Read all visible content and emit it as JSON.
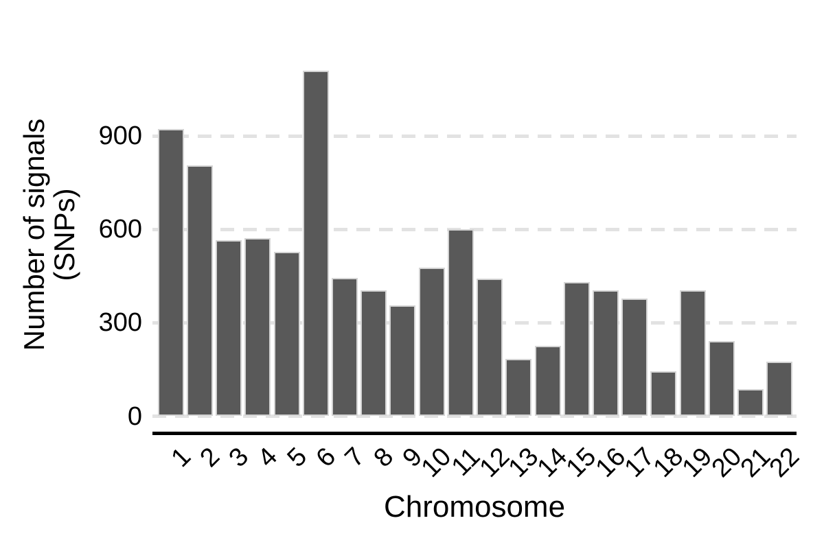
{
  "chart_data": {
    "type": "bar",
    "xlabel": "Chromosome",
    "ylabel_lines": [
      "Number of signals",
      "(SNPs)"
    ],
    "categories": [
      "1",
      "2",
      "3",
      "4",
      "5",
      "6",
      "7",
      "8",
      "9",
      "10",
      "11",
      "12",
      "13",
      "14",
      "15",
      "16",
      "17",
      "18",
      "19",
      "20",
      "21",
      "22"
    ],
    "values": [
      922,
      806,
      566,
      573,
      528,
      1110,
      445,
      405,
      355,
      477,
      600,
      443,
      183,
      226,
      431,
      404,
      377,
      145,
      404,
      242,
      88,
      176
    ],
    "yticks": [
      0,
      300,
      600,
      900
    ],
    "ylim": [
      0,
      1160
    ],
    "grid": "horizontal-dashed",
    "legend": "none",
    "x_tick_angle": 45,
    "colors": {
      "bar_fill": "#595959",
      "bar_border": "#d4d4d4",
      "gridline": "#e2e2e2",
      "axis_line": "#000000",
      "text": "#000000",
      "background": "#ffffff"
    }
  }
}
